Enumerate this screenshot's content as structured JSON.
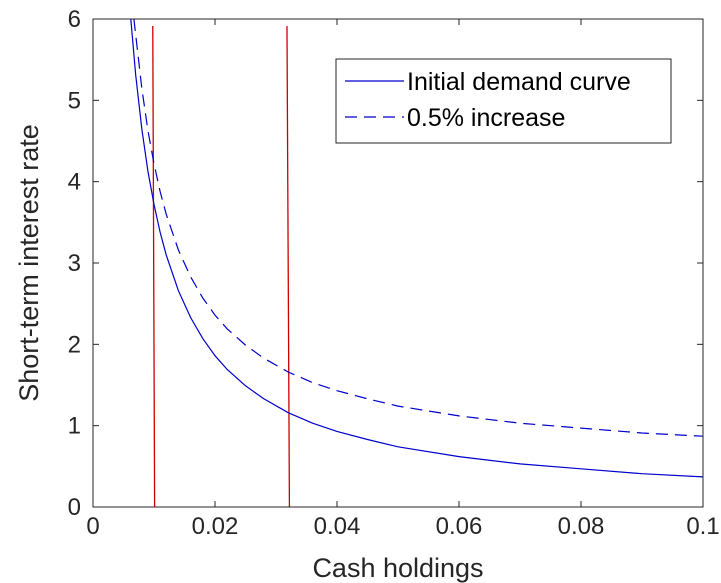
{
  "chart_data": {
    "type": "line",
    "xlabel": "Cash holdings",
    "ylabel": "Short-term interest rate",
    "xlim": [
      0,
      0.1
    ],
    "ylim": [
      0,
      6
    ],
    "x_ticks": [
      "0",
      "0.02",
      "0.04",
      "0.06",
      "0.08",
      "0.1"
    ],
    "y_ticks": [
      "0",
      "1",
      "2",
      "3",
      "4",
      "5",
      "6"
    ],
    "grid": false,
    "legend_position": "top-right",
    "colors": {
      "demand": "#0000cc",
      "vertical": "#cc0000",
      "axis": "#262626"
    },
    "series": [
      {
        "name": "Initial demand curve",
        "style": "solid",
        "x": [
          0.0062,
          0.007,
          0.008,
          0.009,
          0.01,
          0.011,
          0.012,
          0.014,
          0.016,
          0.018,
          0.02,
          0.022,
          0.025,
          0.028,
          0.032,
          0.036,
          0.04,
          0.045,
          0.05,
          0.06,
          0.07,
          0.08,
          0.09,
          0.1
        ],
        "values": [
          6.0,
          5.31,
          4.65,
          4.13,
          3.72,
          3.38,
          3.1,
          2.66,
          2.33,
          2.07,
          1.86,
          1.69,
          1.49,
          1.33,
          1.16,
          1.03,
          0.93,
          0.83,
          0.74,
          0.62,
          0.53,
          0.47,
          0.41,
          0.37
        ]
      },
      {
        "name": "0.5% increase",
        "style": "dashed",
        "x": [
          0.0067,
          0.008,
          0.009,
          0.01,
          0.011,
          0.012,
          0.014,
          0.016,
          0.018,
          0.02,
          0.022,
          0.025,
          0.028,
          0.032,
          0.036,
          0.04,
          0.045,
          0.05,
          0.06,
          0.07,
          0.08,
          0.09,
          0.1
        ],
        "values": [
          6.0,
          5.15,
          4.63,
          4.22,
          3.88,
          3.6,
          3.16,
          2.83,
          2.57,
          2.36,
          2.19,
          1.99,
          1.83,
          1.66,
          1.53,
          1.43,
          1.33,
          1.24,
          1.12,
          1.03,
          0.97,
          0.91,
          0.87
        ]
      }
    ],
    "vertical_lines": [
      {
        "x_top": 0.0098,
        "x_bottom": 0.0101
      },
      {
        "x_top": 0.0318,
        "x_bottom": 0.0322
      }
    ]
  }
}
